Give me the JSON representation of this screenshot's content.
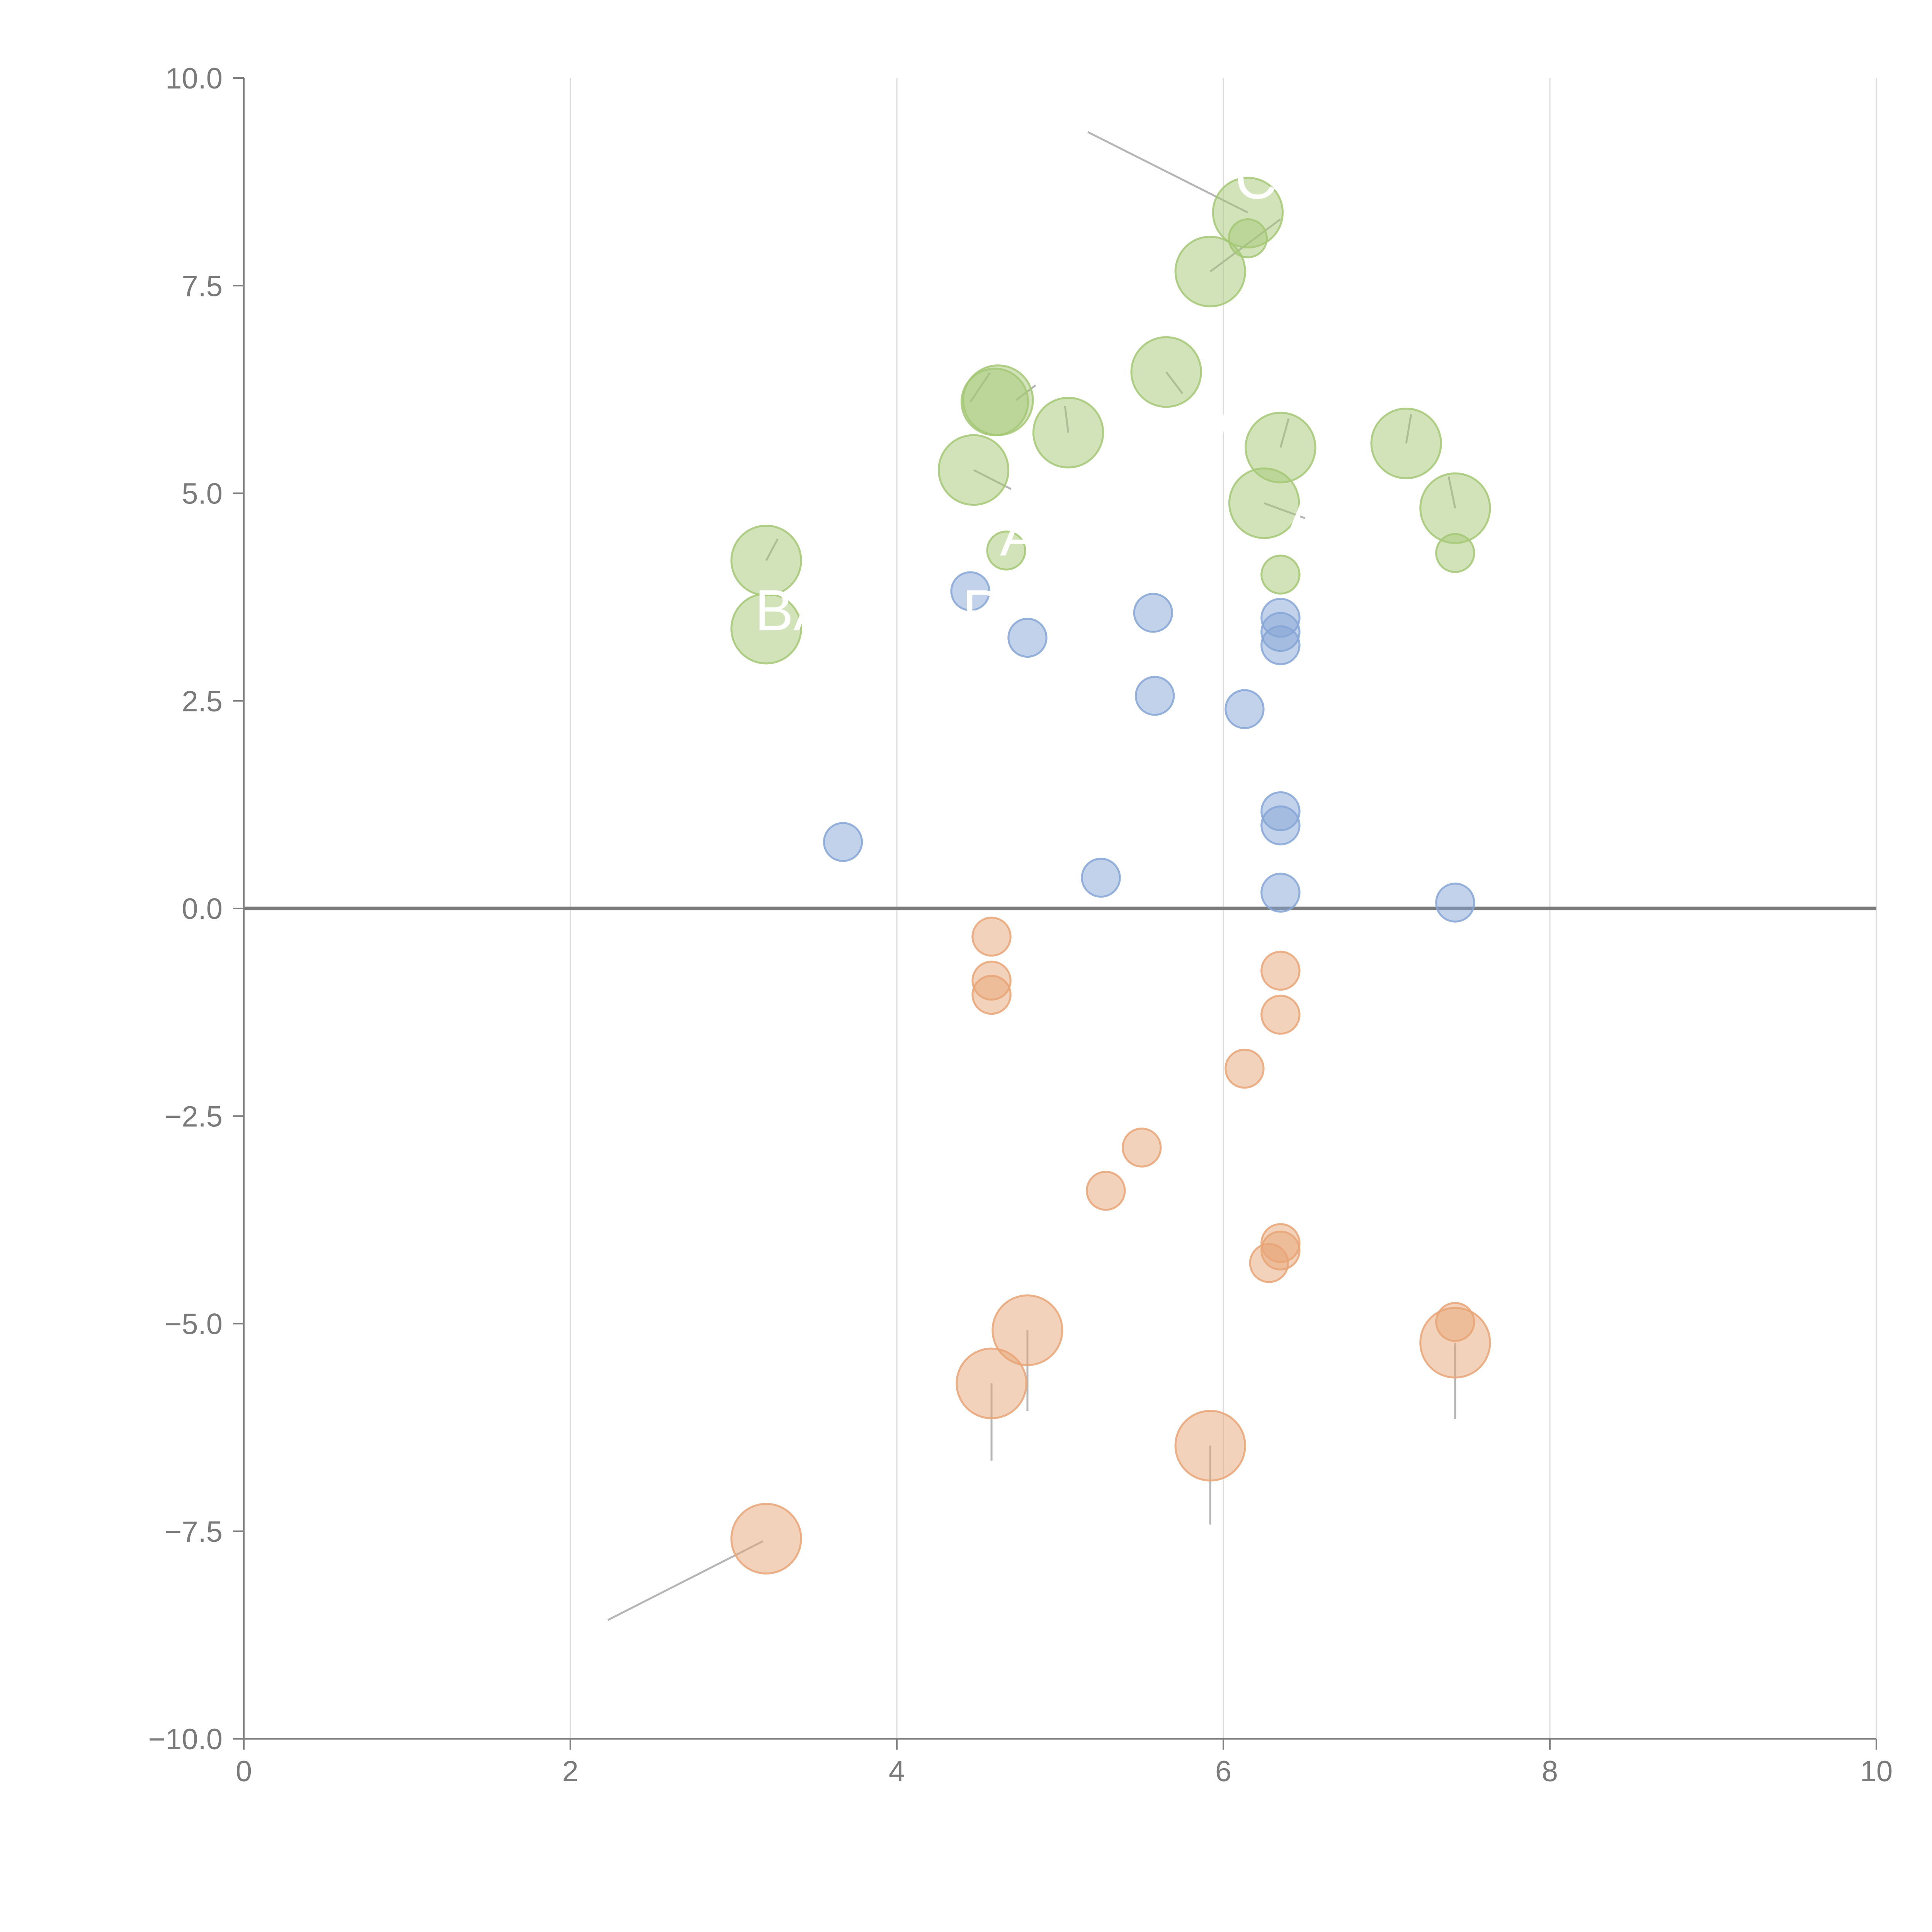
{
  "chart_data": {
    "type": "scatter",
    "title": "",
    "xlabel": "",
    "ylabel": "",
    "xlim": [
      0,
      10
    ],
    "ylim": [
      -10,
      10
    ],
    "grid": {
      "x": true,
      "y": false
    },
    "x_ticks": [
      0,
      2,
      4,
      6,
      8,
      10
    ],
    "x_tick_labels": [
      "0",
      "2",
      "4",
      "6",
      "8",
      "10"
    ],
    "y_ticks": [
      10,
      7.5,
      5,
      2.5,
      0,
      -2.5,
      -5,
      -7.5,
      -10
    ],
    "y_tick_labels": [
      "10.0",
      "7.5",
      "5.0",
      "2.5",
      "0.0",
      "−2.5",
      "−5.0",
      "−7.5",
      "−10.0"
    ],
    "reference_line": {
      "y": 0
    },
    "series": [
      {
        "name": "green",
        "color": "#a5c875",
        "points": [
          {
            "x": 6.15,
            "y": 8.38,
            "size": 2.2
          },
          {
            "x": 6.15,
            "y": 8.07,
            "size": 1.2
          },
          {
            "x": 5.92,
            "y": 7.67,
            "size": 2.2
          },
          {
            "x": 5.65,
            "y": 6.46,
            "size": 2.2
          },
          {
            "x": 4.62,
            "y": 6.12,
            "size": 2.2
          },
          {
            "x": 4.6,
            "y": 6.1,
            "size": 2.1
          },
          {
            "x": 5.05,
            "y": 5.73,
            "size": 2.2
          },
          {
            "x": 6.35,
            "y": 5.55,
            "size": 2.2
          },
          {
            "x": 7.12,
            "y": 5.6,
            "size": 2.2
          },
          {
            "x": 4.47,
            "y": 5.28,
            "size": 2.2
          },
          {
            "x": 6.25,
            "y": 4.88,
            "size": 2.2
          },
          {
            "x": 7.42,
            "y": 4.82,
            "size": 2.2
          },
          {
            "x": 4.67,
            "y": 4.31,
            "size": 1.2
          },
          {
            "x": 7.42,
            "y": 4.28,
            "size": 1.2
          },
          {
            "x": 3.2,
            "y": 4.19,
            "size": 2.2
          },
          {
            "x": 6.35,
            "y": 4.02,
            "size": 1.2
          },
          {
            "x": 3.2,
            "y": 3.37,
            "size": 2.2
          }
        ]
      },
      {
        "name": "blue",
        "color": "#86a6d6",
        "points": [
          {
            "x": 4.45,
            "y": 3.82,
            "size": 1.2
          },
          {
            "x": 5.57,
            "y": 3.56,
            "size": 1.2
          },
          {
            "x": 6.35,
            "y": 3.5,
            "size": 1.2
          },
          {
            "x": 6.35,
            "y": 3.33,
            "size": 1.2
          },
          {
            "x": 4.8,
            "y": 3.26,
            "size": 1.2
          },
          {
            "x": 6.35,
            "y": 3.17,
            "size": 1.2
          },
          {
            "x": 5.58,
            "y": 2.56,
            "size": 1.2
          },
          {
            "x": 6.13,
            "y": 2.4,
            "size": 1.2
          },
          {
            "x": 6.35,
            "y": 1.17,
            "size": 1.2
          },
          {
            "x": 6.35,
            "y": 1.0,
            "size": 1.2
          },
          {
            "x": 3.67,
            "y": 0.8,
            "size": 1.2
          },
          {
            "x": 5.25,
            "y": 0.37,
            "size": 1.2
          },
          {
            "x": 6.35,
            "y": 0.19,
            "size": 1.2
          },
          {
            "x": 7.42,
            "y": 0.07,
            "size": 1.2
          }
        ]
      },
      {
        "name": "orange",
        "color": "#e8a577",
        "points": [
          {
            "x": 4.58,
            "y": -0.34,
            "size": 1.2
          },
          {
            "x": 6.35,
            "y": -0.75,
            "size": 1.2
          },
          {
            "x": 4.58,
            "y": -0.87,
            "size": 1.2
          },
          {
            "x": 4.58,
            "y": -1.04,
            "size": 1.2
          },
          {
            "x": 6.35,
            "y": -1.28,
            "size": 1.2
          },
          {
            "x": 6.13,
            "y": -1.93,
            "size": 1.2
          },
          {
            "x": 5.5,
            "y": -2.88,
            "size": 1.2
          },
          {
            "x": 5.28,
            "y": -3.4,
            "size": 1.2
          },
          {
            "x": 6.35,
            "y": -4.03,
            "size": 1.2
          },
          {
            "x": 6.35,
            "y": -4.12,
            "size": 1.2
          },
          {
            "x": 6.28,
            "y": -4.27,
            "size": 1.2
          },
          {
            "x": 7.42,
            "y": -4.98,
            "size": 1.2
          },
          {
            "x": 4.8,
            "y": -5.08,
            "size": 2.2
          },
          {
            "x": 7.42,
            "y": -5.23,
            "size": 2.2
          },
          {
            "x": 4.58,
            "y": -5.72,
            "size": 2.2
          },
          {
            "x": 5.92,
            "y": -6.47,
            "size": 2.2
          },
          {
            "x": 3.2,
            "y": -7.59,
            "size": 2.2
          }
        ]
      }
    ],
    "annotations": [
      {
        "text": "C",
        "x": 6.2,
        "y": 8.55,
        "anchor": "middle",
        "line": [
          5.17,
          9.35,
          6.15,
          8.38
        ]
      },
      {
        "text": "",
        "x": null,
        "y": null,
        "anchor": "middle",
        "line": [
          6.35,
          8.3,
          5.92,
          7.67
        ]
      },
      {
        "text": "W",
        "x": 6.05,
        "y": 5.7,
        "anchor": "middle",
        "line": [
          6.35,
          5.55,
          6.4,
          5.9
        ]
      },
      {
        "text": "A",
        "x": 4.75,
        "y": 4.25,
        "anchor": "middle",
        "line": null
      },
      {
        "text": "A",
        "x": 6.5,
        "y": 4.45,
        "anchor": "middle",
        "line": [
          6.25,
          4.88,
          6.5,
          4.7
        ]
      },
      {
        "text": "BA",
        "x": 3.13,
        "y": 3.35,
        "anchor": "start",
        "line": [
          3.2,
          4.19,
          3.27,
          4.45
        ]
      },
      {
        "text": "P",
        "x": 4.4,
        "y": 3.35,
        "anchor": "start",
        "line": null
      },
      {
        "text": "",
        "x": null,
        "y": null,
        "anchor": "middle",
        "line": [
          4.47,
          5.28,
          4.7,
          5.05
        ]
      },
      {
        "text": "",
        "x": null,
        "y": null,
        "anchor": "middle",
        "line": [
          4.57,
          6.45,
          4.45,
          6.1
        ]
      },
      {
        "text": "",
        "x": null,
        "y": null,
        "anchor": "middle",
        "line": [
          4.73,
          6.12,
          4.85,
          6.3
        ]
      },
      {
        "text": "",
        "x": null,
        "y": null,
        "anchor": "middle",
        "line": [
          5.05,
          5.73,
          5.03,
          6.05
        ]
      },
      {
        "text": "",
        "x": null,
        "y": null,
        "anchor": "middle",
        "line": [
          5.65,
          6.46,
          5.75,
          6.2
        ]
      },
      {
        "text": "",
        "x": null,
        "y": null,
        "anchor": "middle",
        "line": [
          7.12,
          5.6,
          7.15,
          5.95
        ]
      },
      {
        "text": "",
        "x": null,
        "y": null,
        "anchor": "middle",
        "line": [
          7.42,
          4.82,
          7.38,
          5.2
        ]
      },
      {
        "text": "",
        "x": null,
        "y": null,
        "anchor": "middle",
        "line": [
          4.8,
          -5.08,
          4.8,
          -6.05
        ]
      },
      {
        "text": "",
        "x": null,
        "y": null,
        "anchor": "middle",
        "line": [
          4.58,
          -5.72,
          4.58,
          -6.65
        ]
      },
      {
        "text": "",
        "x": null,
        "y": null,
        "anchor": "middle",
        "line": [
          5.92,
          -6.47,
          5.92,
          -7.42
        ]
      },
      {
        "text": "",
        "x": null,
        "y": null,
        "anchor": "middle",
        "line": [
          7.42,
          -5.23,
          7.42,
          -6.15
        ]
      },
      {
        "text": "",
        "x": null,
        "y": null,
        "anchor": "middle",
        "line": [
          3.18,
          -7.62,
          2.23,
          -8.57
        ]
      }
    ]
  }
}
